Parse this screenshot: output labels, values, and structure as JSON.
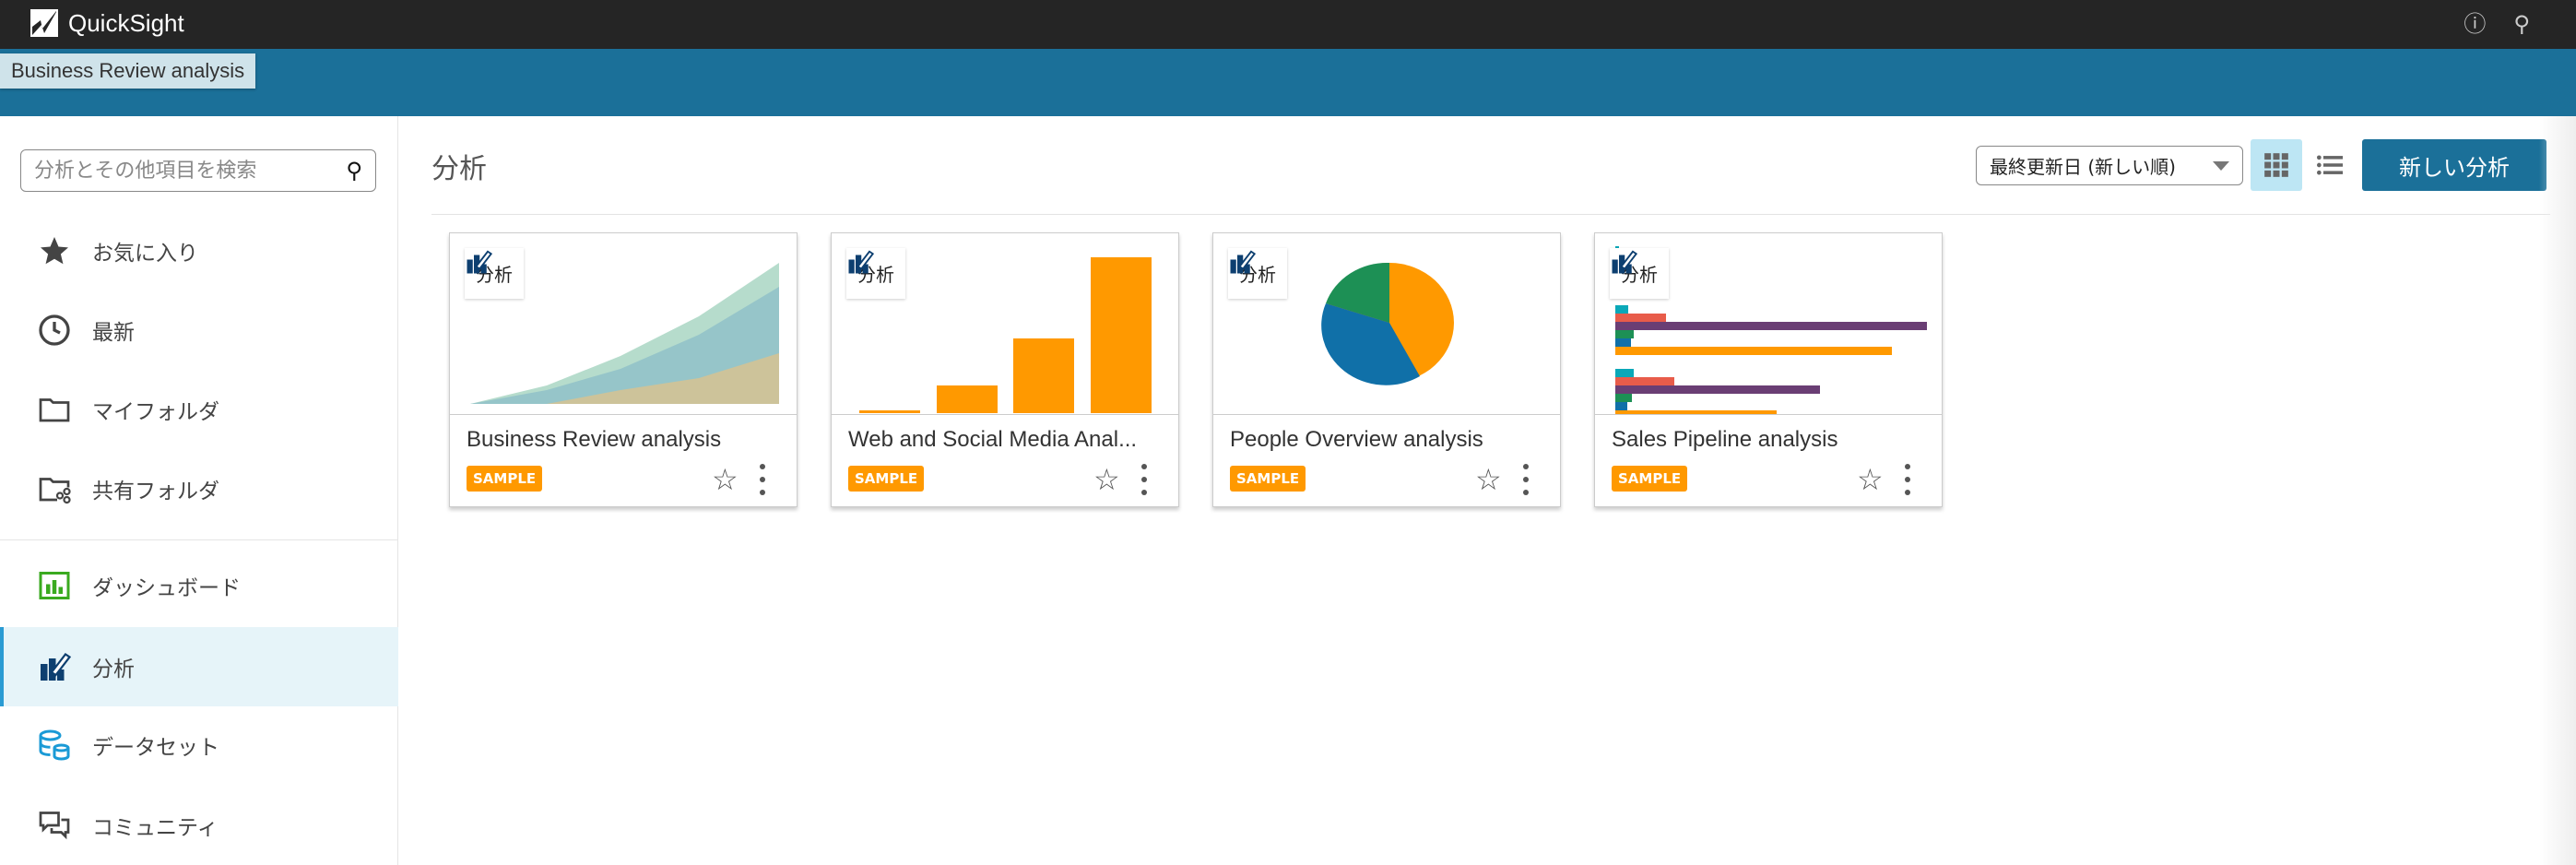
{
  "header": {
    "app_name": "QuickSight",
    "help_icon": "help-icon",
    "user_icon": "user-icon"
  },
  "tooltip": "Business Review analysis",
  "sidebar": {
    "search_placeholder": "分析とその他項目を検索",
    "items": [
      {
        "label": "お気に入り",
        "icon": "star-icon"
      },
      {
        "label": "最新",
        "icon": "clock-icon"
      },
      {
        "label": "マイフォルダ",
        "icon": "folder-icon"
      },
      {
        "label": "共有フォルダ",
        "icon": "shared-folder-icon"
      },
      {
        "label": "ダッシュボード",
        "icon": "dashboard-icon"
      },
      {
        "label": "分析",
        "icon": "analysis-icon",
        "active": true
      },
      {
        "label": "データセット",
        "icon": "dataset-icon"
      },
      {
        "label": "コミュニティ",
        "icon": "community-icon"
      }
    ]
  },
  "main": {
    "title": "分析",
    "sort_value": "最終更新日 (新しい順)",
    "new_button": "新しい分析",
    "cards": [
      {
        "tag": "分析",
        "title": "Business Review analysis",
        "badge": "SAMPLE"
      },
      {
        "tag": "分析",
        "title": "Web and Social Media Anal...",
        "badge": "SAMPLE"
      },
      {
        "tag": "分析",
        "title": "People Overview analysis",
        "badge": "SAMPLE"
      },
      {
        "tag": "分析",
        "title": "Sales Pipeline analysis",
        "badge": "SAMPLE"
      }
    ]
  },
  "colors": {
    "topbar": "#252525",
    "brand": "#1b7099",
    "sample": "#ff9900",
    "active_bg": "#e6f4f9"
  }
}
